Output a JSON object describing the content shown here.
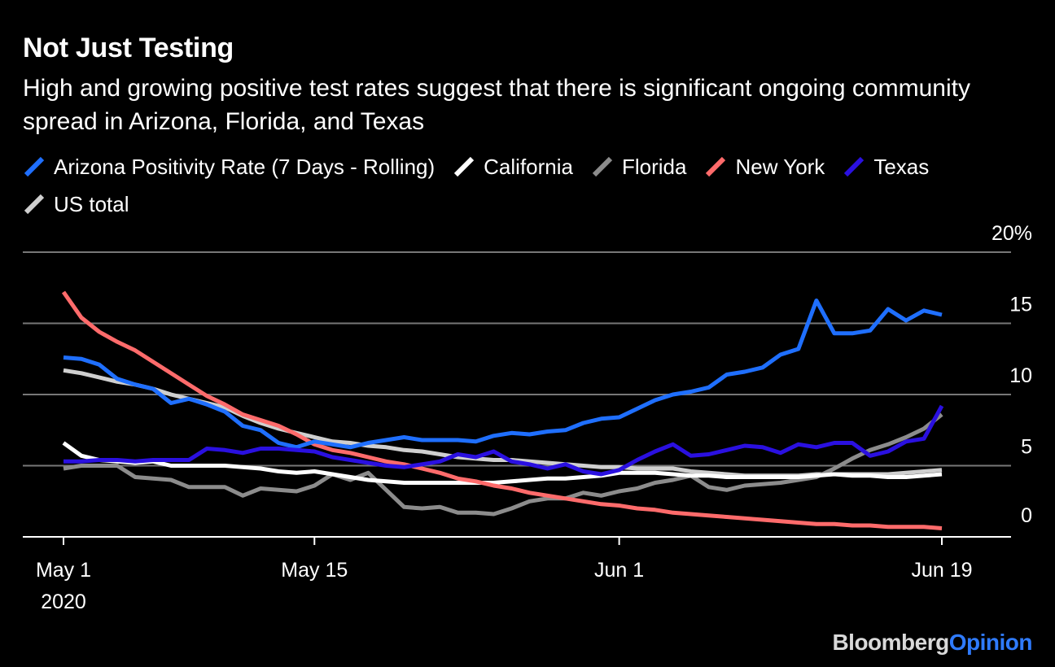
{
  "title": "Not Just Testing",
  "subtitle": "High and growing positive test rates suggest that there is significant ongoing community spread in Arizona, Florida, and Texas",
  "brand": {
    "part1": "Bloomberg",
    "part2": "Opinion"
  },
  "colors": {
    "background": "#000000",
    "grid": "#777777",
    "arizona": "#1f6fff",
    "california": "#ffffff",
    "florida": "#8c8c8c",
    "new_york": "#ff6b6b",
    "texas": "#2a10e0",
    "us_total": "#cfcfcf"
  },
  "chart_data": {
    "type": "line",
    "title": "Not Just Testing",
    "xlabel": "",
    "ylabel": "",
    "ylim": [
      0,
      20
    ],
    "y_ticks": [
      {
        "value": 0,
        "label": "0"
      },
      {
        "value": 5,
        "label": "5"
      },
      {
        "value": 10,
        "label": "10"
      },
      {
        "value": 15,
        "label": "15"
      },
      {
        "value": 20,
        "label": "20%"
      }
    ],
    "x_ticks": [
      {
        "date": "2020-05-01",
        "label": "May 1",
        "sublabel": "2020"
      },
      {
        "date": "2020-05-15",
        "label": "May 15"
      },
      {
        "date": "2020-06-01",
        "label": "Jun 1"
      },
      {
        "date": "2020-06-19",
        "label": "Jun 19"
      }
    ],
    "grid": true,
    "legend_position": "top-left",
    "x": [
      "2020-05-01",
      "2020-05-02",
      "2020-05-03",
      "2020-05-04",
      "2020-05-05",
      "2020-05-06",
      "2020-05-07",
      "2020-05-08",
      "2020-05-09",
      "2020-05-10",
      "2020-05-11",
      "2020-05-12",
      "2020-05-13",
      "2020-05-14",
      "2020-05-15",
      "2020-05-16",
      "2020-05-17",
      "2020-05-18",
      "2020-05-19",
      "2020-05-20",
      "2020-05-21",
      "2020-05-22",
      "2020-05-23",
      "2020-05-24",
      "2020-05-25",
      "2020-05-26",
      "2020-05-27",
      "2020-05-28",
      "2020-05-29",
      "2020-05-30",
      "2020-05-31",
      "2020-06-01",
      "2020-06-02",
      "2020-06-03",
      "2020-06-04",
      "2020-06-05",
      "2020-06-06",
      "2020-06-07",
      "2020-06-08",
      "2020-06-09",
      "2020-06-10",
      "2020-06-11",
      "2020-06-12",
      "2020-06-13",
      "2020-06-14",
      "2020-06-15",
      "2020-06-16",
      "2020-06-17",
      "2020-06-18",
      "2020-06-19"
    ],
    "series": [
      {
        "name": "Arizona Positivity Rate (7 Days - Rolling)",
        "color_key": "arizona",
        "values": [
          12.6,
          12.5,
          12.1,
          11.1,
          10.7,
          10.4,
          9.4,
          9.7,
          9.3,
          8.8,
          7.8,
          7.5,
          6.6,
          6.3,
          6.7,
          6.5,
          6.3,
          6.6,
          6.8,
          7.0,
          6.8,
          6.8,
          6.8,
          6.7,
          7.1,
          7.3,
          7.2,
          7.4,
          7.5,
          8.0,
          8.3,
          8.4,
          9.0,
          9.6,
          10.0,
          10.2,
          10.5,
          11.4,
          11.6,
          11.9,
          12.8,
          13.2,
          16.6,
          14.3,
          14.3,
          14.5,
          16.0,
          15.2,
          15.9,
          15.6
        ]
      },
      {
        "name": "California",
        "color_key": "california",
        "values": [
          6.6,
          5.7,
          5.4,
          5.3,
          5.2,
          5.3,
          5.0,
          5.0,
          5.0,
          5.0,
          4.9,
          4.8,
          4.6,
          4.5,
          4.6,
          4.4,
          4.2,
          4.0,
          3.9,
          3.8,
          3.8,
          3.8,
          3.8,
          3.8,
          3.8,
          3.9,
          4.0,
          4.1,
          4.1,
          4.2,
          4.3,
          4.5,
          4.5,
          4.5,
          4.4,
          4.3,
          4.3,
          4.2,
          4.2,
          4.2,
          4.2,
          4.2,
          4.3,
          4.4,
          4.3,
          4.3,
          4.2,
          4.2,
          4.3,
          4.4
        ]
      },
      {
        "name": "Florida",
        "color_key": "florida",
        "values": [
          4.8,
          5.0,
          5.0,
          5.0,
          4.2,
          4.1,
          4.0,
          3.5,
          3.5,
          3.5,
          2.9,
          3.4,
          3.3,
          3.2,
          3.6,
          4.4,
          4.0,
          4.5,
          3.3,
          2.1,
          2.0,
          2.1,
          1.7,
          1.7,
          1.6,
          2.0,
          2.5,
          2.7,
          2.7,
          3.1,
          2.9,
          3.2,
          3.4,
          3.8,
          4.0,
          4.3,
          3.5,
          3.3,
          3.6,
          3.7,
          3.8,
          4.0,
          4.2,
          4.8,
          5.5,
          6.1,
          6.5,
          7.0,
          7.6,
          8.6
        ]
      },
      {
        "name": "New York",
        "color_key": "new_york",
        "values": [
          17.2,
          15.4,
          14.4,
          13.7,
          13.1,
          12.3,
          11.5,
          10.7,
          9.9,
          9.3,
          8.6,
          8.2,
          7.8,
          7.2,
          6.5,
          6.1,
          5.9,
          5.6,
          5.3,
          5.1,
          4.8,
          4.5,
          4.1,
          3.9,
          3.6,
          3.4,
          3.1,
          2.9,
          2.7,
          2.5,
          2.3,
          2.2,
          2.0,
          1.9,
          1.7,
          1.6,
          1.5,
          1.4,
          1.3,
          1.2,
          1.1,
          1.0,
          0.9,
          0.9,
          0.8,
          0.8,
          0.7,
          0.7,
          0.7,
          0.6
        ]
      },
      {
        "name": "Texas",
        "color_key": "texas",
        "values": [
          5.3,
          5.3,
          5.4,
          5.4,
          5.3,
          5.4,
          5.4,
          5.4,
          6.2,
          6.1,
          5.9,
          6.2,
          6.2,
          6.1,
          6.0,
          5.6,
          5.4,
          5.2,
          5.0,
          4.9,
          5.1,
          5.3,
          5.8,
          5.6,
          6.0,
          5.3,
          5.1,
          4.8,
          5.1,
          4.6,
          4.4,
          4.7,
          5.4,
          6.0,
          6.5,
          5.7,
          5.8,
          6.1,
          6.4,
          6.3,
          5.9,
          6.5,
          6.3,
          6.6,
          6.6,
          5.7,
          6.0,
          6.7,
          6.9,
          9.2
        ]
      },
      {
        "name": "US total",
        "color_key": "us_total",
        "values": [
          11.7,
          11.5,
          11.2,
          10.9,
          10.7,
          10.4,
          10.0,
          9.7,
          9.4,
          9.1,
          8.5,
          8.0,
          7.6,
          7.3,
          7.0,
          6.7,
          6.6,
          6.4,
          6.3,
          6.1,
          6.0,
          5.8,
          5.6,
          5.5,
          5.4,
          5.4,
          5.3,
          5.2,
          5.1,
          5.0,
          4.9,
          4.9,
          4.8,
          4.8,
          4.8,
          4.6,
          4.5,
          4.4,
          4.3,
          4.3,
          4.3,
          4.3,
          4.4,
          4.4,
          4.4,
          4.4,
          4.4,
          4.5,
          4.6,
          4.7
        ]
      }
    ]
  },
  "legend": [
    {
      "label": "Arizona Positivity Rate (7 Days - Rolling)",
      "color_key": "arizona"
    },
    {
      "label": "California",
      "color_key": "california"
    },
    {
      "label": "Florida",
      "color_key": "florida"
    },
    {
      "label": "New York",
      "color_key": "new_york"
    },
    {
      "label": "Texas",
      "color_key": "texas"
    },
    {
      "label": "US total",
      "color_key": "us_total"
    }
  ]
}
